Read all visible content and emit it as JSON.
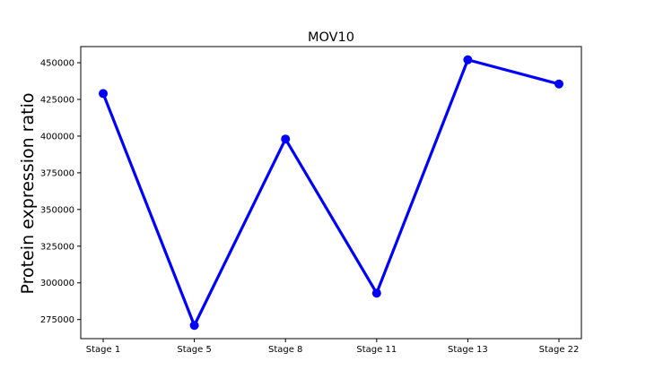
{
  "chart_data": {
    "type": "line",
    "title": "MOV10",
    "xlabel": "",
    "ylabel": "Protein expression ratio",
    "categories": [
      "Stage 1",
      "Stage 5",
      "Stage 8",
      "Stage 11",
      "Stage 13",
      "Stage 22"
    ],
    "series": [
      {
        "values": [
          429000,
          271000,
          398000,
          293000,
          452000,
          435500
        ]
      }
    ],
    "yticks": [
      275000,
      300000,
      325000,
      350000,
      375000,
      400000,
      425000,
      450000
    ],
    "ylim": [
      262000,
      461000
    ],
    "grid": false,
    "legend": false,
    "line_color": "#0000ff"
  }
}
